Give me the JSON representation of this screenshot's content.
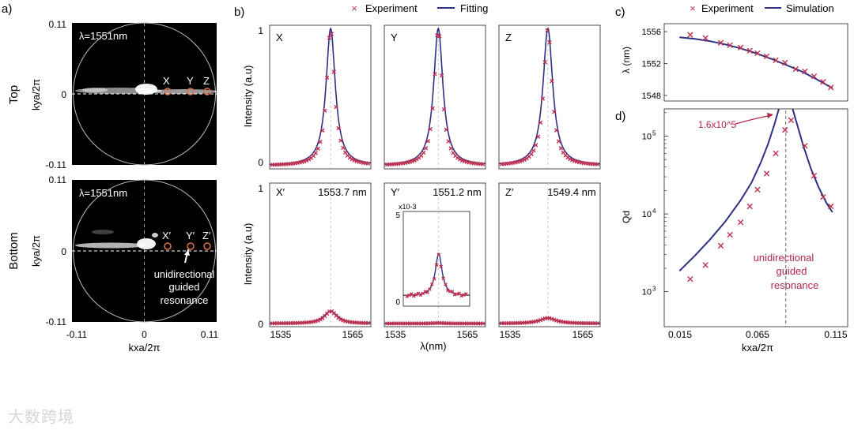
{
  "colors": {
    "experiment": "#c03050",
    "fit": "#2d3184",
    "axis": "#231f20",
    "annotation": "#b0284a"
  },
  "panel_labels": [
    "a)",
    "b)",
    "c)",
    "d)"
  ],
  "panel_a": {
    "lambda_label": "λ=1551nm",
    "top_label": "Top",
    "bottom_label": "Bottom",
    "ylabel": "kya/2π",
    "xlabel": "kxa/2π",
    "x_ticks": [
      "-0.11",
      "0",
      "0.11"
    ],
    "y_ticks": [
      "0.11",
      "0",
      "-0.11"
    ],
    "top_points": [
      "X",
      "Y",
      "Z"
    ],
    "bottom_points": [
      "X′",
      "Y′",
      "Z′"
    ],
    "annotation": [
      "unidirectional",
      "guided",
      "resonance"
    ]
  },
  "panel_b": {
    "legend": {
      "experiment": "Experiment",
      "fit": "Fitting"
    },
    "ylabel": "Intensity  (a.u)",
    "xlabel": "λ(nm)",
    "x_ticks": [
      "1535",
      "1565"
    ],
    "y_ticks_top": [
      "1",
      "0"
    ],
    "y_ticks_bottom": [
      "1",
      "0"
    ],
    "top_panels": [
      {
        "label": "X",
        "center": 1553.7,
        "amplitude": 1.0,
        "width": 2.0
      },
      {
        "label": "Y",
        "center": 1551.2,
        "amplitude": 1.0,
        "width": 2.0
      },
      {
        "label": "Z",
        "center": 1549.4,
        "amplitude": 1.0,
        "width": 2.1
      }
    ],
    "bottom_panels": [
      {
        "label": "X′",
        "wavelength": "1553.7 nm",
        "center": 1553.7,
        "amplitude": 0.09,
        "width": 3.0
      },
      {
        "label": "Y′",
        "wavelength": "1551.2 nm",
        "center": 1551.2,
        "amplitude": 0.004,
        "width": 2.5
      },
      {
        "label": "Z′",
        "wavelength": "1549.4 nm",
        "center": 1549.4,
        "amplitude": 0.04,
        "width": 4.0
      }
    ],
    "inset": {
      "scale_label": "x10-3",
      "y_ticks": [
        "5",
        "0"
      ],
      "center": 1551.2,
      "amplitude": 2.4,
      "baseline": 0.4,
      "width": 2.2
    }
  },
  "chart_data": [
    {
      "type": "scatter",
      "panel": "c",
      "ylabel": "λ (nm)",
      "y_ticks": [
        "1556",
        "1552",
        "1548"
      ],
      "ylim": [
        1547.3,
        1557
      ],
      "xlim": [
        0.005,
        0.125
      ],
      "legend": {
        "experiment": "Experiment",
        "simulation": "Simulation"
      },
      "experiment": {
        "x": [
          0.022,
          0.032,
          0.042,
          0.048,
          0.055,
          0.061,
          0.066,
          0.072,
          0.078,
          0.084,
          0.091,
          0.097,
          0.103,
          0.109,
          0.114
        ],
        "y": [
          1555.6,
          1555.2,
          1554.6,
          1554.3,
          1554.0,
          1553.6,
          1553.3,
          1552.9,
          1552.4,
          1552.1,
          1551.3,
          1551.0,
          1550.4,
          1549.7,
          1549.0
        ]
      },
      "simulation": {
        "x": [
          0.015,
          0.025,
          0.035,
          0.045,
          0.055,
          0.065,
          0.075,
          0.085,
          0.095,
          0.105,
          0.115
        ],
        "y": [
          1555.3,
          1555.1,
          1554.8,
          1554.4,
          1553.9,
          1553.3,
          1552.6,
          1551.8,
          1551.0,
          1550.0,
          1548.9
        ]
      }
    },
    {
      "type": "scatter",
      "panel": "d",
      "ylabel": "Qd",
      "xlabel": "kxa/2π",
      "x_ticks": [
        "0.015",
        "0.065",
        "0.115"
      ],
      "y_scale": "log",
      "y_ticks": [
        "10^3",
        "10^4",
        "10^5"
      ],
      "ylim_log10": [
        2.55,
        5.35
      ],
      "xlim": [
        0.005,
        0.125
      ],
      "peak_annotation": "1.6x10^5",
      "vertical_annotation": [
        "unidirectional",
        "guided",
        "resonance"
      ],
      "vline_x": 0.0845,
      "experiment": {
        "x": [
          0.022,
          0.032,
          0.042,
          0.048,
          0.055,
          0.061,
          0.066,
          0.072,
          0.078,
          0.084,
          0.088,
          0.097,
          0.103,
          0.109,
          0.114
        ],
        "y": [
          1450,
          2200,
          3900,
          5400,
          7800,
          12500,
          20500,
          33000,
          60000,
          120000,
          160000,
          75000,
          31000,
          16500,
          12500
        ]
      },
      "simulation_left": {
        "x": [
          0.015,
          0.025,
          0.035,
          0.045,
          0.055,
          0.062,
          0.068,
          0.073,
          0.077,
          0.08
        ],
        "y": [
          1850,
          2900,
          4700,
          8000,
          15000,
          25000,
          45000,
          80000,
          140000,
          230000
        ]
      },
      "simulation_right": {
        "x": [
          0.089,
          0.092,
          0.096,
          0.101,
          0.106,
          0.111,
          0.115
        ],
        "y": [
          230000,
          140000,
          75000,
          38000,
          22000,
          14000,
          10500
        ]
      }
    }
  ],
  "watermark": "大数跨境"
}
